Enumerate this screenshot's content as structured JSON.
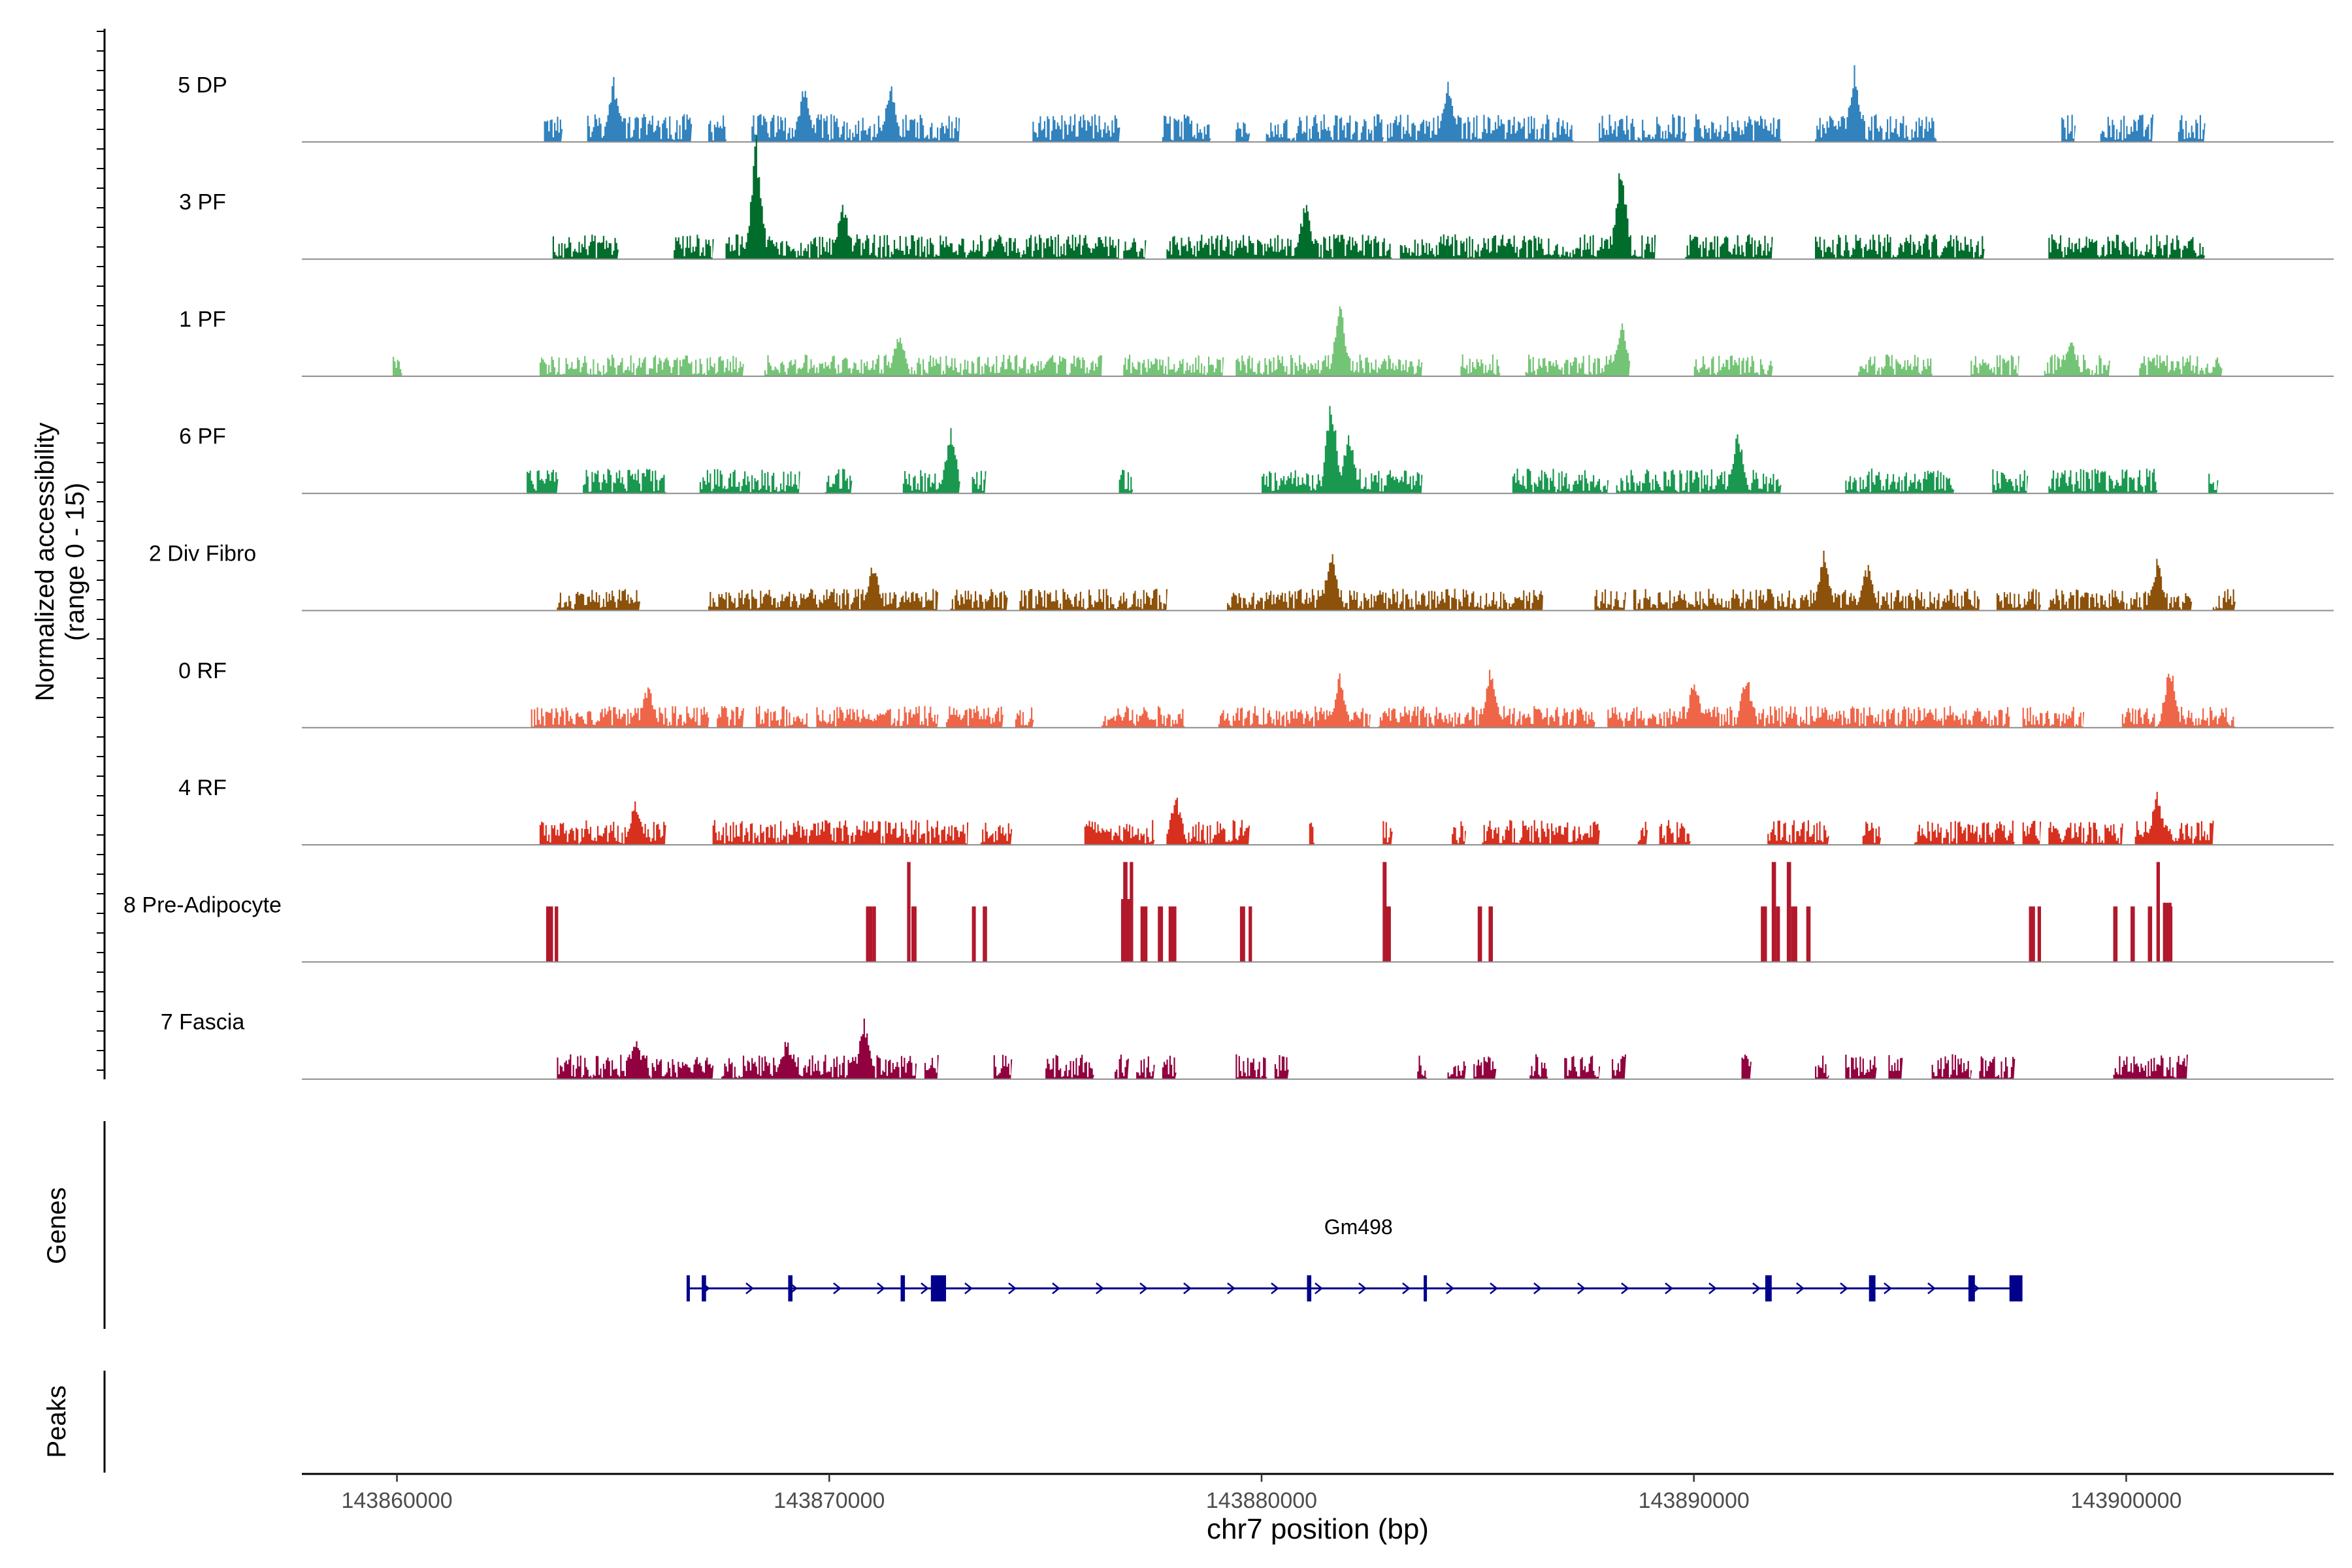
{
  "chart_data": {
    "type": "area",
    "title": "",
    "xlabel": "chr7 position (bp)",
    "ylabel_line1": "Normalized accessibility",
    "ylabel_line2": "(range 0 - 15)",
    "ylim": [
      0,
      15
    ],
    "xlim": [
      143857800,
      143904800
    ],
    "x_ticks": [
      143860000,
      143870000,
      143880000,
      143890000,
      143900000
    ],
    "x_tick_labels": [
      "143860000",
      "143870000",
      "143880000",
      "143890000",
      "143900000"
    ],
    "panels": {
      "genes_label": "Genes",
      "peaks_label": "Peaks"
    },
    "tracks": [
      {
        "name": "5 DP",
        "color": "#3182bd",
        "style": "dense",
        "amplitude": 0.9,
        "regions": [
          [
            143863400,
            143863800
          ],
          [
            143864400,
            143866800
          ],
          [
            143867200,
            143867600
          ],
          [
            143868200,
            143873000
          ],
          [
            143874700,
            143876700
          ],
          [
            143877700,
            143878800
          ],
          [
            143879400,
            143879700
          ],
          [
            143880100,
            143882800
          ],
          [
            143882900,
            143887200
          ],
          [
            143887800,
            143889800
          ],
          [
            143890000,
            143892000
          ],
          [
            143892800,
            143895600
          ],
          [
            143898500,
            143898800
          ],
          [
            143899400,
            143900600
          ],
          [
            143901200,
            143901800
          ]
        ],
        "peaks": [
          [
            143865000,
            2.2
          ],
          [
            143869400,
            1.9
          ],
          [
            143871400,
            2.0
          ],
          [
            143884300,
            2.1
          ],
          [
            143893700,
            2.5
          ]
        ]
      },
      {
        "name": "3 PF",
        "color": "#006d2c",
        "style": "dense",
        "amplitude": 0.8,
        "regions": [
          [
            143863600,
            143865100
          ],
          [
            143866400,
            143867300
          ],
          [
            143867600,
            143876700
          ],
          [
            143876800,
            143877300
          ],
          [
            143877800,
            143883000
          ],
          [
            143883200,
            143889100
          ],
          [
            143889800,
            143891800
          ],
          [
            143892800,
            143896700
          ],
          [
            143898200,
            143901800
          ]
        ],
        "peaks": [
          [
            143868300,
            4.2
          ],
          [
            143870300,
            2.1
          ],
          [
            143881000,
            2.0
          ],
          [
            143888300,
            3.4
          ]
        ]
      },
      {
        "name": "1 PF",
        "color": "#74c476",
        "style": "dense",
        "amplitude": 0.7,
        "regions": [
          [
            143859900,
            143860100
          ],
          [
            143863300,
            143866300
          ],
          [
            143866300,
            143868000
          ],
          [
            143868500,
            143876300
          ],
          [
            143876800,
            143879100
          ],
          [
            143879400,
            143883700
          ],
          [
            143884600,
            143885500
          ],
          [
            143886100,
            143888500
          ],
          [
            143890000,
            143891800
          ],
          [
            143893800,
            143895500
          ],
          [
            143896400,
            143897500
          ],
          [
            143898100,
            143899600
          ],
          [
            143900300,
            143902200
          ]
        ],
        "peaks": [
          [
            143871600,
            1.6
          ],
          [
            143881800,
            2.6
          ],
          [
            143888300,
            2.0
          ],
          [
            143898700,
            1.5
          ]
        ]
      },
      {
        "name": "6 PF",
        "color": "#1a9850",
        "style": "dense",
        "amplitude": 0.8,
        "regions": [
          [
            143863000,
            143863700
          ],
          [
            143864300,
            143866200
          ],
          [
            143867000,
            143869300
          ],
          [
            143869900,
            143870500
          ],
          [
            143871700,
            143873000
          ],
          [
            143873300,
            143873600
          ],
          [
            143876700,
            143877000
          ],
          [
            143880000,
            143883700
          ],
          [
            143885800,
            143888000
          ],
          [
            143888200,
            143892000
          ],
          [
            143893500,
            143896000
          ],
          [
            143896900,
            143897700
          ],
          [
            143898200,
            143900700
          ],
          [
            143901900,
            143902100
          ]
        ],
        "peaks": [
          [
            143872800,
            2.2
          ],
          [
            143881600,
            3.4
          ],
          [
            143882000,
            2.2
          ],
          [
            143891000,
            2.3
          ]
        ]
      },
      {
        "name": "2 Div Fibro",
        "color": "#8c510a",
        "style": "dense",
        "amplitude": 0.7,
        "regions": [
          [
            143863700,
            143865600
          ],
          [
            143867200,
            143872500
          ],
          [
            143872800,
            143874100
          ],
          [
            143874400,
            143877800
          ],
          [
            143879200,
            143886500
          ],
          [
            143887700,
            143888400
          ],
          [
            143888600,
            143896600
          ],
          [
            143897000,
            143898000
          ],
          [
            143898200,
            143901500
          ],
          [
            143902000,
            143902500
          ]
        ],
        "peaks": [
          [
            143871000,
            1.7
          ],
          [
            143881600,
            2.1
          ],
          [
            143893000,
            2.1
          ],
          [
            143894000,
            1.6
          ],
          [
            143900700,
            1.8
          ]
        ]
      },
      {
        "name": "0 RF",
        "color": "#ef6548",
        "style": "dense",
        "amplitude": 0.7,
        "regions": [
          [
            143863100,
            143867200
          ],
          [
            143867400,
            143868000
          ],
          [
            143868300,
            143869500
          ],
          [
            143869700,
            143872500
          ],
          [
            143872700,
            143874000
          ],
          [
            143874300,
            143874700
          ],
          [
            143876300,
            143878200
          ],
          [
            143879000,
            143882500
          ],
          [
            143882700,
            143887700
          ],
          [
            143888000,
            143897300
          ],
          [
            143897600,
            143899000
          ],
          [
            143899900,
            143902500
          ]
        ],
        "peaks": [
          [
            143865800,
            1.6
          ],
          [
            143881800,
            1.9
          ],
          [
            143885300,
            2.2
          ],
          [
            143890000,
            1.8
          ],
          [
            143891200,
            1.9
          ],
          [
            143901000,
            2.3
          ]
        ]
      },
      {
        "name": "4 RF",
        "color": "#d7301f",
        "style": "dense",
        "amplitude": 0.8,
        "regions": [
          [
            143863300,
            143866200
          ],
          [
            143867300,
            143873200
          ],
          [
            143873500,
            143874200
          ],
          [
            143875900,
            143877500
          ],
          [
            143877800,
            143879700
          ],
          [
            143881100,
            143881200
          ],
          [
            143882800,
            143883000
          ],
          [
            143884400,
            143884700
          ],
          [
            143885100,
            143887800
          ],
          [
            143888700,
            143888900
          ],
          [
            143889200,
            143889900
          ],
          [
            143891700,
            143893100
          ],
          [
            143893900,
            143894300
          ],
          [
            143895100,
            143897400
          ],
          [
            143897600,
            143898000
          ],
          [
            143898200,
            143899900
          ],
          [
            143900200,
            143902000
          ]
        ],
        "peaks": [
          [
            143865500,
            1.5
          ],
          [
            143878000,
            1.8
          ],
          [
            143900700,
            1.8
          ]
        ]
      },
      {
        "name": "8 Pre-Adipocyte",
        "color": "#b2182b",
        "style": "sparse",
        "bars": [
          [
            143863450,
            7.5,
            160
          ],
          [
            143863650,
            7.5,
            80
          ],
          [
            143870850,
            7.5,
            150
          ],
          [
            143871000,
            7.5,
            80
          ],
          [
            143871800,
            13.5,
            80
          ],
          [
            143871900,
            7.5,
            120
          ],
          [
            143873300,
            7.5,
            90
          ],
          [
            143873550,
            7.5,
            100
          ],
          [
            143876800,
            13.5,
            100
          ],
          [
            143876950,
            13.5,
            80
          ],
          [
            143876750,
            8.5,
            260
          ],
          [
            143877200,
            7.5,
            160
          ],
          [
            143877600,
            7.5,
            120
          ],
          [
            143877850,
            7.5,
            180
          ],
          [
            143879500,
            7.5,
            120
          ],
          [
            143879700,
            7.5,
            80
          ],
          [
            143882800,
            13.5,
            90
          ],
          [
            143882850,
            7.5,
            140
          ],
          [
            143885000,
            7.5,
            100
          ],
          [
            143885250,
            7.5,
            100
          ],
          [
            143891550,
            7.5,
            140
          ],
          [
            143891800,
            13.5,
            100
          ],
          [
            143891900,
            7.5,
            90
          ],
          [
            143892150,
            13.5,
            100
          ],
          [
            143892250,
            7.5,
            140
          ],
          [
            143892600,
            7.5,
            100
          ],
          [
            143897750,
            7.5,
            140
          ],
          [
            143897950,
            7.5,
            80
          ],
          [
            143899700,
            7.5,
            100
          ],
          [
            143900100,
            7.5,
            100
          ],
          [
            143900500,
            7.5,
            100
          ],
          [
            143900700,
            13.5,
            80
          ],
          [
            143900850,
            8.0,
            200
          ],
          [
            143900950,
            7.5,
            120
          ]
        ]
      },
      {
        "name": "7 Fascia",
        "color": "#91003f",
        "style": "dense",
        "amplitude": 0.8,
        "regions": [
          [
            143863700,
            143867300
          ],
          [
            143867500,
            143872000
          ],
          [
            143872200,
            143872500
          ],
          [
            143873800,
            143874200
          ],
          [
            143875000,
            143876100
          ],
          [
            143876600,
            143876900
          ],
          [
            143877100,
            143877500
          ],
          [
            143877700,
            143878000
          ],
          [
            143879400,
            143880100
          ],
          [
            143880300,
            143880600
          ],
          [
            143883600,
            143883800
          ],
          [
            143884300,
            143884700
          ],
          [
            143884900,
            143885400
          ],
          [
            143886200,
            143886600
          ],
          [
            143887000,
            143887800
          ],
          [
            143888100,
            143888400
          ],
          [
            143891100,
            143891300
          ],
          [
            143892800,
            143893100
          ],
          [
            143893500,
            143894200
          ],
          [
            143894500,
            143894800
          ],
          [
            143895500,
            143896400
          ],
          [
            143896600,
            143897400
          ],
          [
            143899700,
            143901400
          ]
        ],
        "peaks": [
          [
            143865500,
            1.5
          ],
          [
            143870800,
            2.1
          ],
          [
            143869000,
            1.4
          ]
        ]
      }
    ],
    "genes": [
      {
        "name": "Gm498",
        "strand": "+",
        "start": 143866700,
        "end": 143897600,
        "exons": [
          [
            143866700,
            143866760
          ],
          [
            143867050,
            143867150
          ],
          [
            143869050,
            143869150
          ],
          [
            143871650,
            143871750
          ],
          [
            143872350,
            143872700
          ],
          [
            143881050,
            143881150
          ],
          [
            143883750,
            143883780
          ],
          [
            143891650,
            143891800
          ],
          [
            143894050,
            143894200
          ],
          [
            143896350,
            143896500
          ],
          [
            143897300,
            143897600
          ]
        ]
      }
    ]
  }
}
